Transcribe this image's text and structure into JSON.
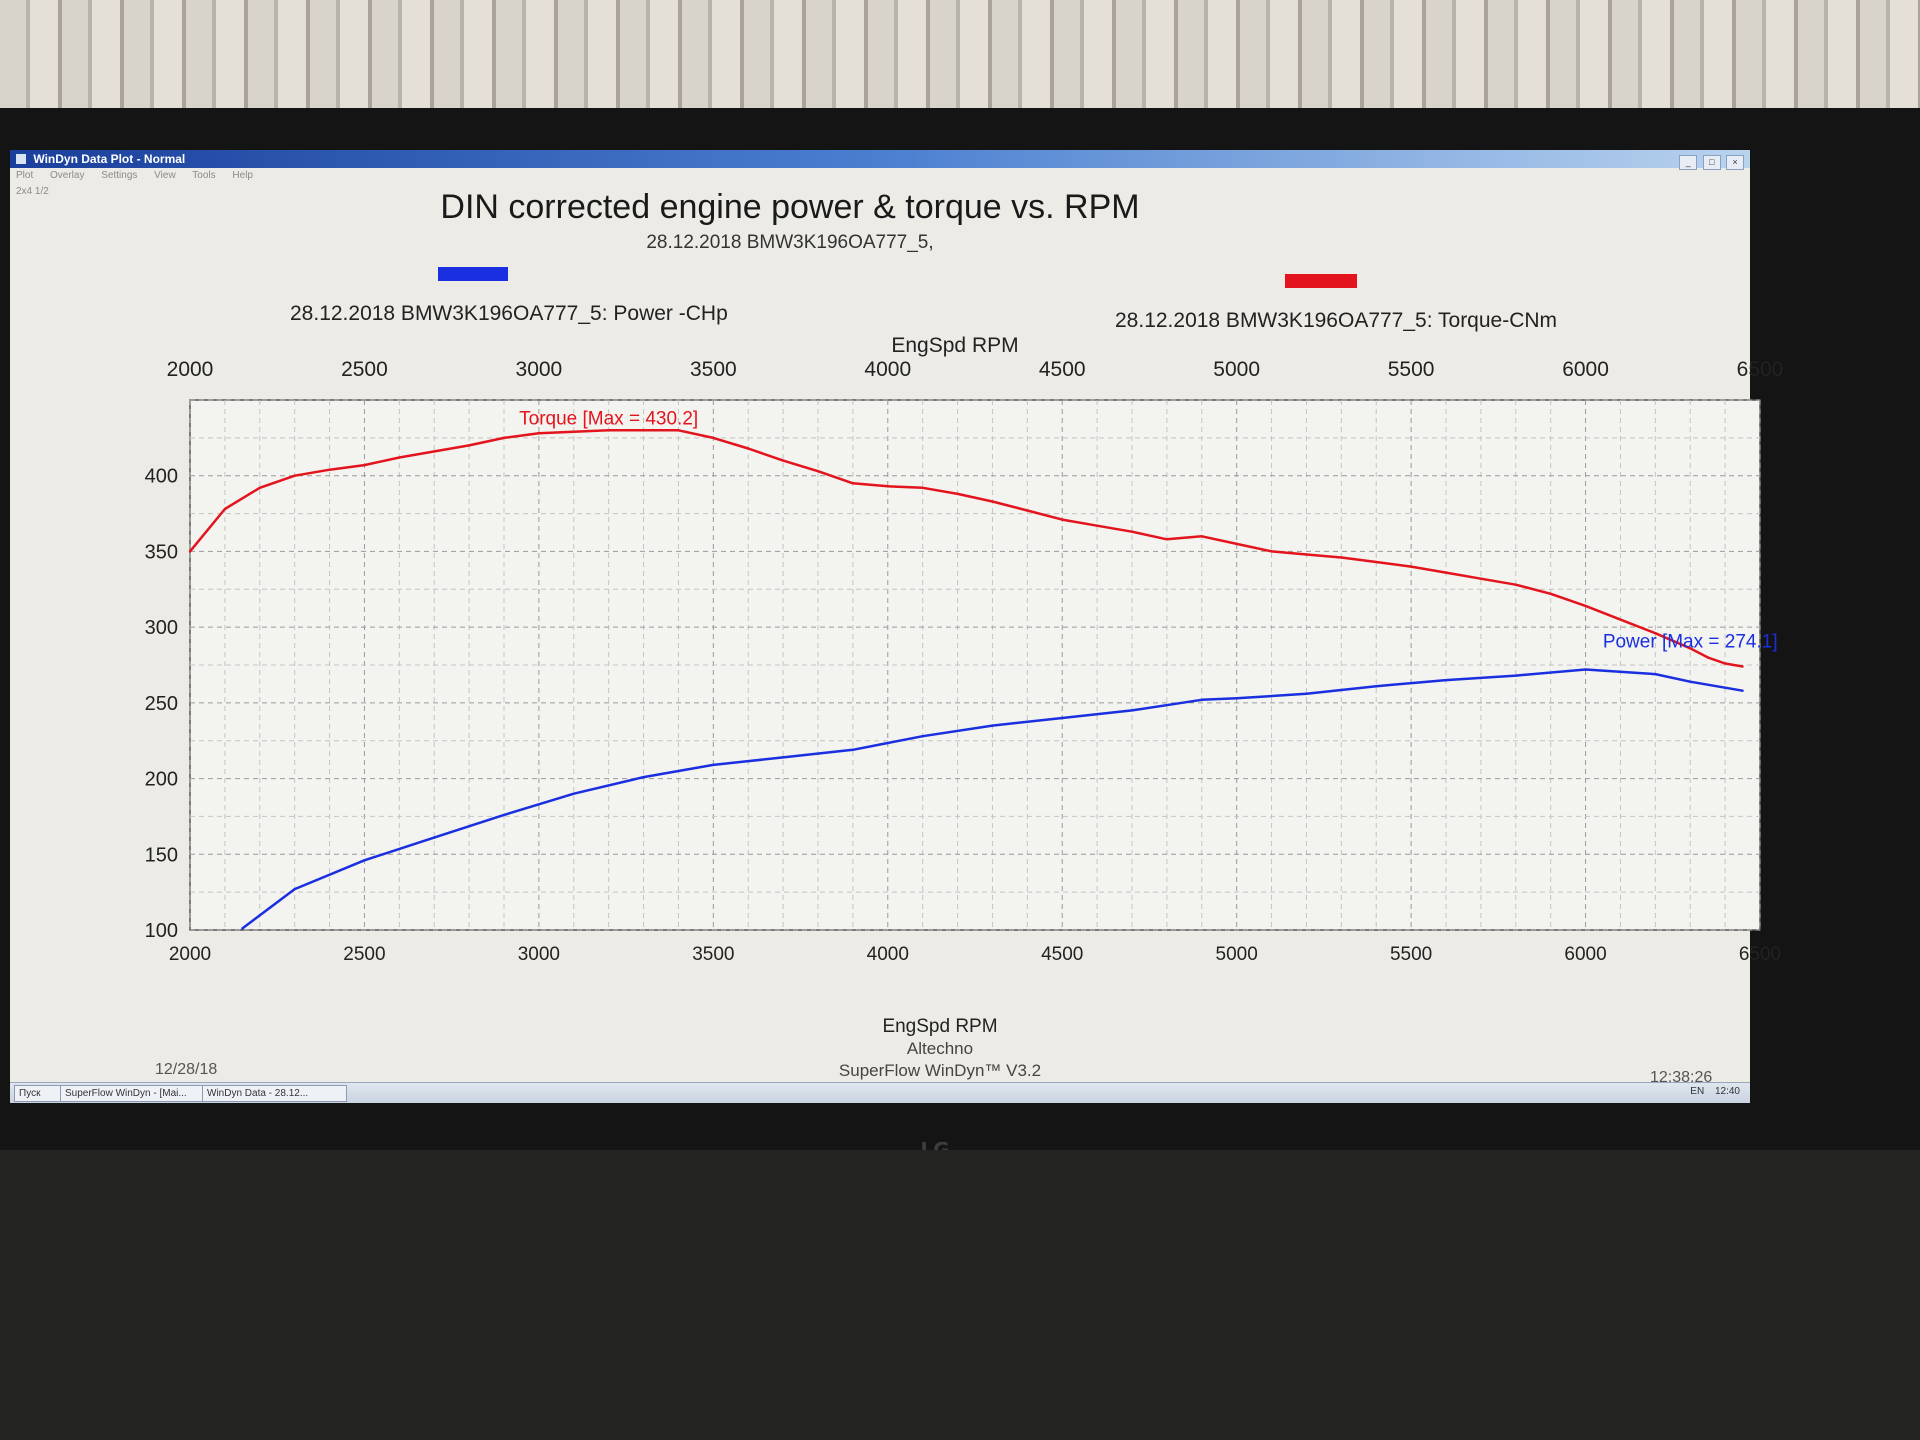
{
  "window": {
    "title": "WinDyn Data Plot - Normal",
    "menu": [
      "Plot",
      "Overlay",
      "Settings",
      "View",
      "Tools",
      "Help"
    ],
    "subtitle": "2x4 1/2",
    "controls": [
      "_",
      "□",
      "×"
    ]
  },
  "header": {
    "title": "DIN corrected engine power & torque vs. RPM",
    "run": "28.12.2018  BMW3K196OA777_5,",
    "legend_power": "28.12.2018  BMW3K196OA777_5: Power -CHp",
    "legend_torque": "28.12.2018  BMW3K196OA777_5: Torque-CNm",
    "legend_power_color": "#1a2fe0",
    "legend_torque_color": "#e3141d"
  },
  "footer": {
    "date": "12/28/18",
    "company": "Altechno",
    "software": "SuperFlow WinDyn™ V3.2",
    "time": "12:38:26"
  },
  "taskbar": {
    "items": [
      "Пуск",
      "SuperFlow WinDyn - [Mai...",
      "WinDyn Data - 28.12..."
    ],
    "lang": "EN",
    "clock": "12:40"
  },
  "chart_data": {
    "type": "line",
    "title": "DIN corrected engine power & torque vs. RPM",
    "xlabel": "EngSpd RPM",
    "x_top_label": "EngSpd RPM",
    "xlim": [
      2000,
      6500
    ],
    "ylim": [
      100,
      450
    ],
    "x_ticks": [
      2000,
      2500,
      3000,
      3500,
      4000,
      4500,
      5000,
      5500,
      6000,
      6500
    ],
    "y_ticks": [
      100,
      150,
      200,
      250,
      300,
      350,
      400
    ],
    "grid": true,
    "series": [
      {
        "name": "28.12.2018  BMW3K196OA777_5: Torque-CNm",
        "color": "#e3141d",
        "annotation": "Torque [Max = 430.2]",
        "x": [
          2000,
          2100,
          2200,
          2300,
          2400,
          2500,
          2600,
          2800,
          2900,
          3000,
          3200,
          3400,
          3500,
          3600,
          3700,
          3800,
          3900,
          4000,
          4100,
          4200,
          4300,
          4400,
          4500,
          4600,
          4700,
          4800,
          4900,
          5000,
          5100,
          5200,
          5300,
          5400,
          5500,
          5600,
          5700,
          5800,
          5900,
          6000,
          6100,
          6200,
          6300,
          6350,
          6400,
          6450
        ],
        "values": [
          350,
          378,
          392,
          400,
          404,
          407,
          412,
          420,
          425,
          428,
          430,
          430,
          425,
          418,
          410,
          403,
          395,
          393,
          392,
          388,
          383,
          377,
          371,
          367,
          363,
          358,
          360,
          355,
          350,
          348,
          346,
          343,
          340,
          336,
          332,
          328,
          322,
          314,
          305,
          296,
          286,
          280,
          276,
          274
        ]
      },
      {
        "name": "28.12.2018  BMW3K196OA777_5: Power -CHp",
        "color": "#1a2fe0",
        "annotation": "Power  [Max = 274.1]",
        "x": [
          2150,
          2300,
          2500,
          2700,
          2900,
          3100,
          3300,
          3500,
          3700,
          3900,
          4100,
          4300,
          4500,
          4700,
          4900,
          5000,
          5200,
          5400,
          5600,
          5800,
          6000,
          6200,
          6300,
          6400,
          6450
        ],
        "values": [
          101,
          127,
          146,
          161,
          176,
          190,
          201,
          209,
          214,
          219,
          228,
          235,
          240,
          245,
          252,
          253,
          256,
          261,
          265,
          268,
          272,
          269,
          264,
          260,
          258
        ]
      }
    ]
  }
}
